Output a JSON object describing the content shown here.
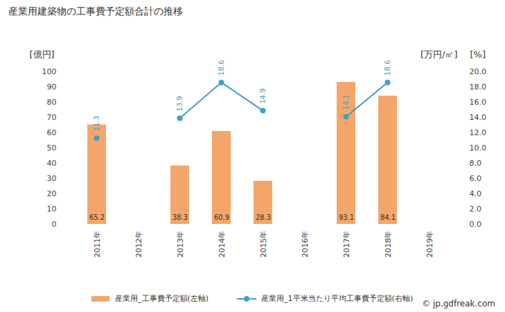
{
  "chart_data": {
    "type": "bar",
    "title": "産業用建築物の工事費予定額合計の推移",
    "y_label": "[億円]",
    "y2_label": "[万円/㎡]",
    "annotations": [
      "[%]"
    ],
    "categories": [
      "2011年",
      "2012年",
      "2013年",
      "2014年",
      "2015年",
      "2016年",
      "2017年",
      "2018年",
      "2019年"
    ],
    "series": [
      {
        "name": "産業用_工事費予定額(左軸)",
        "type": "bar",
        "color": "#f4a66a",
        "values": [
          65.2,
          null,
          38.3,
          60.9,
          28.3,
          null,
          93.1,
          84.1,
          null
        ]
      },
      {
        "name": "産業用_1平米当たり平均工事費予定額(右軸)",
        "type": "line",
        "axis": "y2",
        "color": "#3fa0c4",
        "marker": "circle",
        "values": [
          11.3,
          null,
          13.9,
          18.6,
          14.9,
          null,
          14.1,
          18.6,
          null
        ]
      }
    ],
    "ylim": [
      0,
      100
    ],
    "yticks": [
      0,
      10,
      20,
      30,
      40,
      50,
      60,
      70,
      80,
      90,
      100
    ],
    "y2lim": [
      0,
      20
    ],
    "y2ticks": [
      {
        "value": 0,
        "label": "0.0"
      },
      {
        "value": 2,
        "label": "2.0"
      },
      {
        "value": 4,
        "label": "4.0"
      },
      {
        "value": 6,
        "label": "6.0"
      },
      {
        "value": 8,
        "label": "8.0"
      },
      {
        "value": 10,
        "label": "10.0"
      },
      {
        "value": 12,
        "label": "12.0"
      },
      {
        "value": 14,
        "label": "14.0"
      },
      {
        "value": 16,
        "label": "16.0"
      },
      {
        "value": 18,
        "label": "18.0"
      },
      {
        "value": 20,
        "label": "20.0"
      }
    ],
    "data_labels": true,
    "grid": false,
    "legend": "bottom",
    "source": "© jp.gdfreak.com"
  }
}
